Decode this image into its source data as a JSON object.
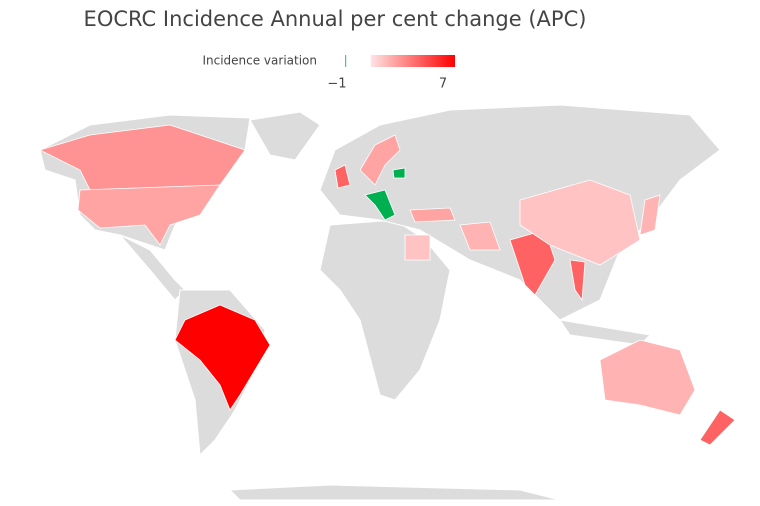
{
  "chart_data": {
    "type": "choropleth",
    "title": "EOCRC Incidence Annual per cent change (APC)",
    "legend_title": "Incidence variation",
    "colorlim": [
      -1,
      7
    ],
    "colorticks": [
      {
        "value": -1,
        "label": "−1"
      },
      7
    ],
    "colors": {
      "negative": "#00b050",
      "low": "#ffe4e4",
      "high": "#ff0000"
    },
    "values": [
      2.5,
      2,
      7,
      4,
      2,
      -1,
      -1,
      2,
      1.5,
      1,
      4,
      1,
      4,
      1.5,
      1.5,
      4
    ]
  }
}
